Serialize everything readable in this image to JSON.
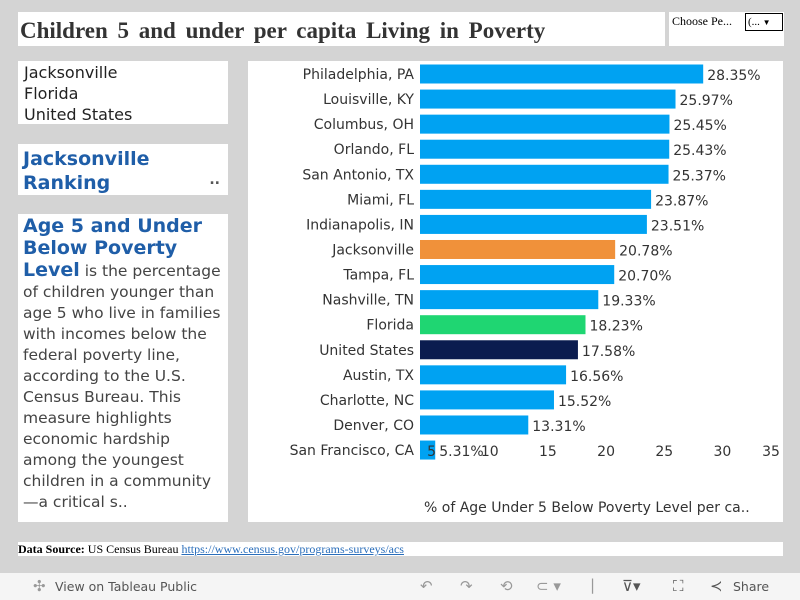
{
  "header": {
    "title": "Children 5 and under per capita Living in Poverty",
    "filter_label": "Choose Pe...",
    "filter_value": "(..."
  },
  "places": [
    "Jacksonville",
    "Florida",
    "United States"
  ],
  "ranking": {
    "title": "Jacksonville Ranking",
    "ellipsis": ".."
  },
  "description": {
    "bold": "Age 5 and Under Below Poverty Level",
    "text": " is the percentage of children younger than age 5 who live in families with incomes below the federal poverty line, according to the U.S. Census Bureau. This measure highlights economic hardship among the youngest children in a community—a critical s.."
  },
  "chart_data": {
    "type": "bar",
    "orientation": "horizontal",
    "categories": [
      "Philadelphia, PA",
      "Louisville, KY",
      "Columbus, OH",
      "Orlando, FL",
      "San Antonio, TX",
      "Miami, FL",
      "Indianapolis, IN",
      "Jacksonville",
      "Tampa, FL",
      "Nashville, TN",
      "Florida",
      "United States",
      "Austin, TX",
      "Charlotte, NC",
      "Denver, CO",
      "San Francisco, CA"
    ],
    "values": [
      28.35,
      25.97,
      25.45,
      25.43,
      25.37,
      23.87,
      23.51,
      20.78,
      20.7,
      19.33,
      18.23,
      17.58,
      16.56,
      15.52,
      13.31,
      5.31
    ],
    "labels": [
      "28.35%",
      "25.97%",
      "25.45%",
      "25.43%",
      "25.37%",
      "23.87%",
      "23.51%",
      "20.78%",
      "20.70%",
      "19.33%",
      "18.23%",
      "17.58%",
      "16.56%",
      "15.52%",
      "13.31%",
      "5.31%"
    ],
    "highlight": {
      "Jacksonville": "#f0913a",
      "Florida": "#1fd672",
      "United States": "#0b1c4f"
    },
    "default_color": "#00a2f2",
    "xlim": [
      4,
      35.5
    ],
    "xticks": [
      5,
      10,
      15,
      20,
      25,
      30,
      35
    ],
    "xlabel": "% of Age Under 5 Below Poverty Level per ca.."
  },
  "source": {
    "label": "Data Source:",
    "text": "US Census Bureau",
    "link": "https://www.census.gov/programs-surveys/acs"
  },
  "toolbar": {
    "view": "View on Tableau Public",
    "share": "Share"
  }
}
